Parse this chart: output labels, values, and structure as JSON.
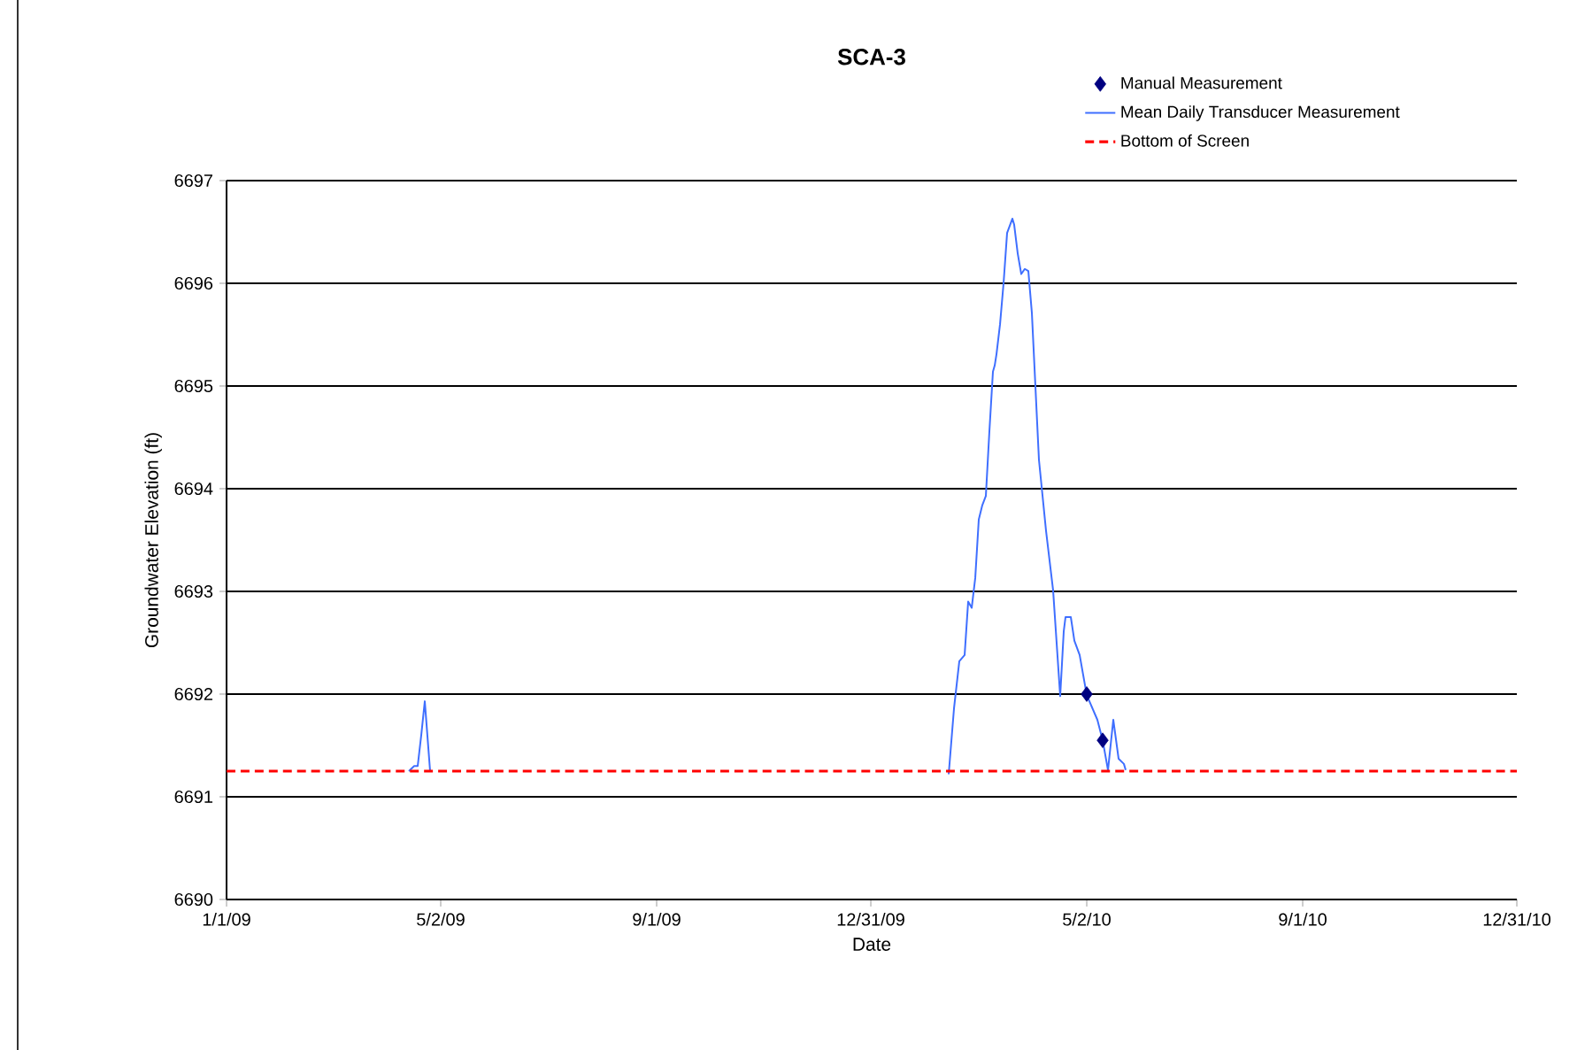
{
  "chart_data": {
    "type": "line",
    "title": "SCA-3",
    "xlabel": "Date",
    "ylabel": "Groundwater Elevation (ft)",
    "xlim": [
      "2009-01-01",
      "2010-12-31"
    ],
    "xticks": [
      {
        "value": "2009-01-01",
        "label": "1/1/09"
      },
      {
        "value": "2009-05-02",
        "label": "5/2/09"
      },
      {
        "value": "2009-09-01",
        "label": "9/1/09"
      },
      {
        "value": "2009-12-31",
        "label": "12/31/09"
      },
      {
        "value": "2010-05-02",
        "label": "5/2/10"
      },
      {
        "value": "2010-09-01",
        "label": "9/1/10"
      },
      {
        "value": "2010-12-31",
        "label": "12/31/10"
      }
    ],
    "ylim": [
      6690,
      6697
    ],
    "yticks": [
      6690,
      6691,
      6692,
      6693,
      6694,
      6695,
      6696,
      6697
    ],
    "grid": "y",
    "legend": "top right",
    "series": [
      {
        "name": "Manual Measurement",
        "type": "scatter",
        "marker": "diamond",
        "color": "#000080",
        "x": [
          "2010-05-02",
          "2010-05-11"
        ],
        "values": [
          6692.0,
          6691.55
        ]
      },
      {
        "name": "Mean Daily Transducer Measurement",
        "marker": "none",
        "line_style": "solid",
        "color": "#3f6fff",
        "x": [
          "2009-04-14",
          "2009-04-17",
          "2009-04-19",
          "2009-04-21",
          "2009-04-23",
          "2009-04-26",
          "2010-01-01",
          "2010-02-13",
          "2010-02-16",
          "2010-02-19",
          "2010-02-22",
          "2010-02-24",
          "2010-02-26",
          "2010-02-28",
          "2010-03-02",
          "2010-03-04",
          "2010-03-06",
          "2010-03-08",
          "2010-03-10",
          "2010-03-11",
          "2010-03-12",
          "2010-03-14",
          "2010-03-16",
          "2010-03-18",
          "2010-03-21",
          "2010-03-22",
          "2010-03-24",
          "2010-03-26",
          "2010-03-28",
          "2010-03-30",
          "2010-04-01",
          "2010-04-05",
          "2010-04-09",
          "2010-04-13",
          "2010-04-17",
          "2010-04-19",
          "2010-04-20",
          "2010-04-23",
          "2010-04-25",
          "2010-04-28",
          "2010-05-02",
          "2010-05-08",
          "2010-05-11",
          "2010-05-14",
          "2010-05-17",
          "2010-05-20",
          "2010-05-23",
          "2010-05-24"
        ],
        "values": [
          6691.25,
          6691.3,
          6691.3,
          6691.6,
          6691.93,
          6691.25,
          null,
          6691.22,
          6691.86,
          6692.32,
          6692.38,
          6692.9,
          6692.84,
          6693.13,
          6693.7,
          6693.84,
          6693.93,
          6694.56,
          6695.14,
          6695.2,
          6695.31,
          6695.6,
          6696.0,
          6696.49,
          6696.63,
          6696.57,
          6696.29,
          6696.09,
          6696.14,
          6696.12,
          6695.71,
          6694.28,
          6693.59,
          6693.01,
          6691.98,
          6692.61,
          6692.75,
          6692.75,
          6692.52,
          6692.38,
          6691.99,
          6691.75,
          6691.55,
          6691.26,
          6691.75,
          6691.37,
          6691.32,
          6691.26
        ]
      }
    ],
    "ref_lines": [
      {
        "axis": "y",
        "value": 6691.25,
        "label": "Bottom of Screen",
        "color": "#ff0000",
        "line_style": "dashed"
      }
    ]
  }
}
